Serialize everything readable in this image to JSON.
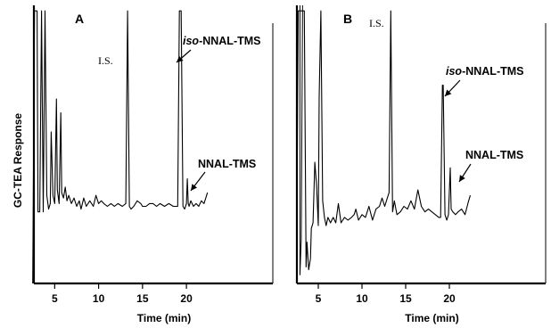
{
  "chart_data": [
    {
      "type": "line",
      "panel_label": "A",
      "xlabel": "Time (min)",
      "ylabel": "GC-TEA Response",
      "x_ticks": [
        5,
        10,
        15,
        20
      ],
      "xlim": [
        1.5,
        28.5
      ],
      "ylim": [
        0,
        100
      ],
      "grid": false,
      "series": [
        {
          "x": [
            2.5,
            2.7,
            3.0,
            3.1,
            3.3,
            3.5,
            3.7,
            3.9,
            4.1,
            4.3,
            4.5,
            4.6,
            4.8,
            5.0,
            5.2,
            5.3,
            5.5,
            5.7,
            5.8,
            6.0,
            6.2,
            6.4,
            6.6,
            6.9,
            7.2,
            7.5,
            7.8,
            8.0,
            8.3,
            8.6,
            9.0,
            9.4,
            9.7,
            10.0,
            10.3,
            10.6,
            11.0,
            11.4,
            11.8,
            12.2,
            12.7,
            13.1,
            13.3,
            13.5,
            13.7,
            14.0,
            14.4,
            14.8,
            15.0,
            15.4,
            15.8,
            16.2,
            16.6,
            17.0,
            17.5,
            18.0,
            18.5,
            18.8,
            19.0,
            19.2,
            19.4,
            19.6,
            19.8,
            20.0,
            20.1,
            20.2,
            20.3,
            20.5,
            20.8,
            21.1,
            21.4,
            21.7,
            22.0,
            22.2,
            22.4
          ],
          "y": [
            0,
            99,
            99,
            26,
            26,
            99,
            26,
            99,
            32,
            27,
            29,
            55,
            32,
            29,
            67,
            34,
            29,
            62,
            33,
            31,
            35,
            30,
            32,
            29,
            31,
            28,
            30,
            27,
            31,
            28,
            30,
            28,
            32,
            29,
            30,
            29,
            28,
            29,
            28,
            29,
            28,
            29,
            99,
            28,
            27,
            28,
            30,
            29,
            28,
            28,
            29,
            29,
            28,
            29,
            28,
            29,
            28,
            28,
            28,
            99,
            99,
            28,
            27,
            29,
            38,
            29,
            28,
            30,
            28,
            29,
            28,
            30,
            29,
            31,
            33
          ],
          "peaks": [
            {
              "x": 13.3,
              "label": "I.S."
            },
            {
              "x": 19.3,
              "label_italic": "iso",
              "label": "-NNAL-TMS"
            },
            {
              "x": 20.1,
              "label": "NNAL-TMS"
            }
          ]
        }
      ]
    },
    {
      "type": "line",
      "panel_label": "B",
      "xlabel": "Time (min)",
      "x_ticks": [
        5,
        10,
        15,
        20
      ],
      "xlim": [
        1.5,
        28.5
      ],
      "ylim": [
        0,
        100
      ],
      "grid": false,
      "series": [
        {
          "x": [
            2.5,
            2.7,
            3.0,
            3.2,
            3.4,
            3.6,
            3.7,
            3.9,
            4.1,
            4.2,
            4.4,
            4.6,
            4.8,
            5.0,
            5.1,
            5.3,
            5.5,
            5.7,
            5.9,
            6.1,
            6.4,
            6.7,
            7.0,
            7.3,
            7.6,
            8.0,
            8.4,
            8.8,
            9.1,
            9.3,
            9.6,
            10.0,
            10.4,
            10.8,
            11.2,
            11.6,
            12.0,
            12.3,
            12.6,
            12.9,
            13.1,
            13.3,
            13.5,
            13.7,
            14.0,
            14.4,
            14.8,
            15.2,
            15.6,
            16.0,
            16.4,
            16.8,
            17.2,
            17.6,
            18.0,
            18.4,
            18.8,
            19.0,
            19.2,
            19.3,
            19.5,
            19.7,
            19.9,
            20.1,
            20.2,
            20.4,
            20.7,
            21.0,
            21.4,
            21.8,
            22.2,
            22.4
          ],
          "y": [
            0,
            99,
            99,
            99,
            99,
            6,
            15,
            5,
            9,
            20,
            22,
            44,
            36,
            21,
            68,
            99,
            30,
            24,
            21,
            24,
            22,
            24,
            22,
            29,
            22,
            24,
            23,
            24,
            25,
            27,
            23,
            25,
            24,
            28,
            23,
            27,
            28,
            31,
            28,
            31,
            33,
            99,
            26,
            30,
            25,
            26,
            28,
            27,
            30,
            27,
            34,
            28,
            26,
            27,
            26,
            25,
            24,
            24,
            72,
            72,
            25,
            23,
            25,
            42,
            27,
            26,
            25,
            26,
            27,
            25,
            30,
            32
          ],
          "peaks": [
            {
              "x": 13.3,
              "label": "I.S."
            },
            {
              "x": 19.25,
              "label_italic": "iso",
              "label": "-NNAL-TMS"
            },
            {
              "x": 20.1,
              "label": "NNAL-TMS"
            }
          ]
        }
      ]
    }
  ]
}
